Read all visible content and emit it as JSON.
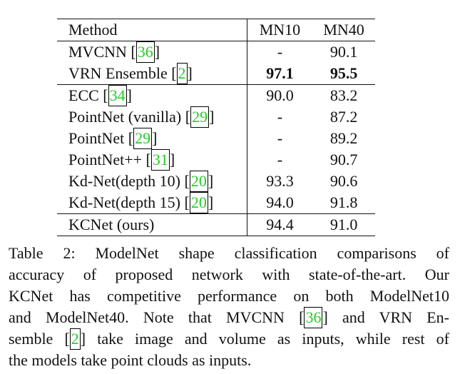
{
  "table": {
    "header": {
      "method": "Method",
      "mn10": "MN10",
      "mn40": "MN40"
    },
    "rows": [
      {
        "method": "MVCNN [",
        "cite": "36",
        "close": "]",
        "mn10": "-",
        "mn40": "90.1"
      },
      {
        "method": "VRN Ensemble [",
        "cite": "2",
        "close": "]",
        "mn10": "97.1",
        "mn40": "95.5"
      },
      {
        "method": "ECC [",
        "cite": "34",
        "close": "]",
        "mn10": "90.0",
        "mn40": "83.2"
      },
      {
        "method": "PointNet (vanilla) [",
        "cite": "29",
        "close": "]",
        "mn10": "-",
        "mn40": "87.2"
      },
      {
        "method": "PointNet [",
        "cite": "29",
        "close": "]",
        "mn10": "-",
        "mn40": "89.2"
      },
      {
        "method": "PointNet++ [",
        "cite": "31",
        "close": "]",
        "mn10": "-",
        "mn40": "90.7"
      },
      {
        "method": "Kd-Net(depth 10) [",
        "cite": "20",
        "close": "]",
        "mn10": "93.3",
        "mn40": "90.6"
      },
      {
        "method": "Kd-Net(depth 15) [",
        "cite": "20",
        "close": "]",
        "mn10": "94.0",
        "mn40": "91.8"
      },
      {
        "method": "KCNet (ours)",
        "cite": "",
        "close": "",
        "mn10": "94.4",
        "mn40": "91.0"
      }
    ]
  },
  "caption": {
    "line1": "Table 2:  ModelNet shape classification comparisons of",
    "line2": "accuracy of proposed network with state-of-the-art.  Our",
    "line3": "KCNet has competitive performance on both ModelNet10",
    "line4a": "and ModelNet40.  Note that MVCNN [",
    "line4cite": "36",
    "line4b": "] and VRN En-",
    "line5a": "semble [",
    "line5cite": "2",
    "line5b": "] take image and volume as inputs, while rest of",
    "line6": "the models take point clouds as inputs."
  }
}
